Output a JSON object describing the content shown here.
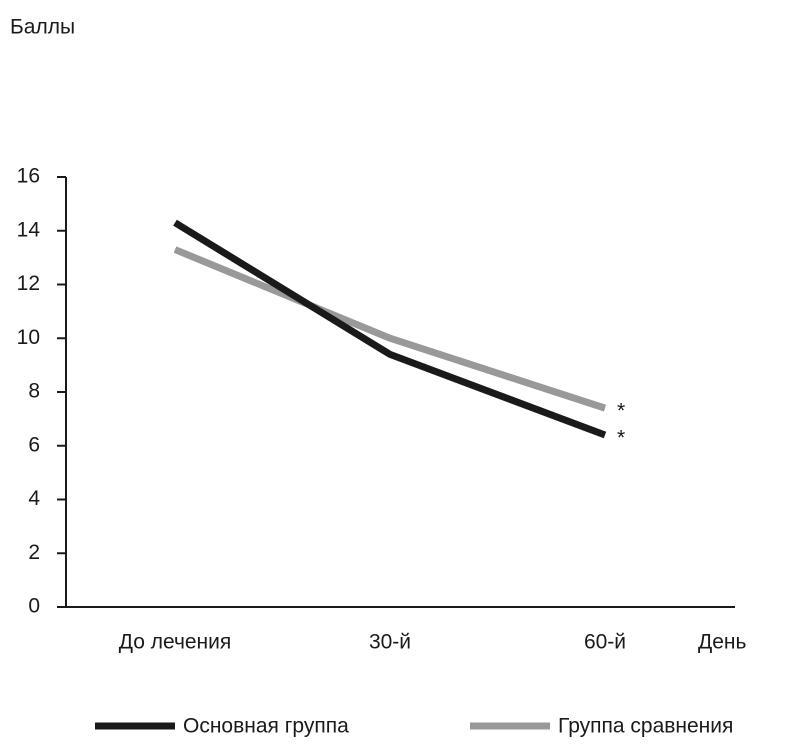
{
  "chart_data": {
    "type": "line",
    "y_label": "Баллы",
    "x_label": "День",
    "categories": [
      "До лечения",
      "30-й",
      "60-й"
    ],
    "series": [
      {
        "name": "Основная группа",
        "color": "#1a1a1a",
        "values": [
          14.3,
          9.4,
          6.4
        ],
        "end_label": "*"
      },
      {
        "name": "Группа сравнения",
        "color": "#999999",
        "values": [
          13.3,
          10,
          7.4
        ],
        "end_label": "*"
      }
    ],
    "ylim": [
      0,
      16
    ],
    "yticks": [
      0,
      2,
      4,
      6,
      8,
      10,
      12,
      14,
      16
    ]
  }
}
